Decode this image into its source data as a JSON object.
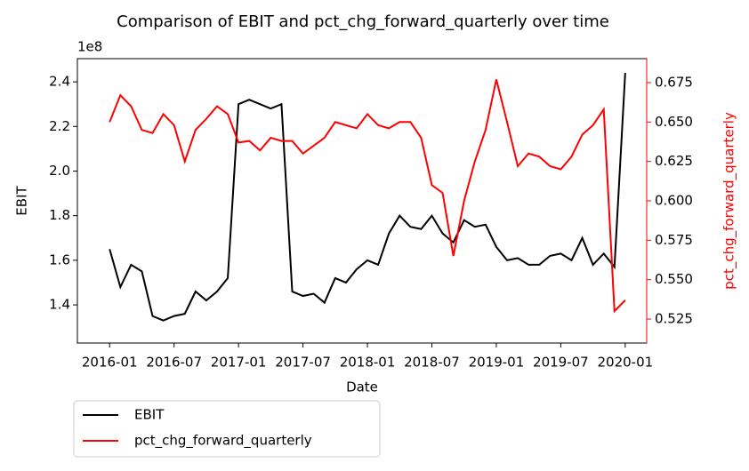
{
  "chart_data": {
    "type": "line",
    "title": "Comparison of EBIT and pct_chg_forward_quarterly over time",
    "x_label": "Date",
    "y_label": "EBIT",
    "y2_label": "pct_chg_forward_quarterly",
    "y_offset_label": "1e8",
    "x": [
      "2016-01",
      "2016-02",
      "2016-03",
      "2016-04",
      "2016-05",
      "2016-06",
      "2016-07",
      "2016-08",
      "2016-09",
      "2016-10",
      "2016-11",
      "2016-12",
      "2017-01",
      "2017-02",
      "2017-03",
      "2017-04",
      "2017-05",
      "2017-06",
      "2017-07",
      "2017-08",
      "2017-09",
      "2017-10",
      "2017-11",
      "2017-12",
      "2018-01",
      "2018-02",
      "2018-03",
      "2018-04",
      "2018-05",
      "2018-06",
      "2018-07",
      "2018-08",
      "2018-09",
      "2018-10",
      "2018-11",
      "2018-12",
      "2019-01",
      "2019-02",
      "2019-03",
      "2019-04",
      "2019-05",
      "2019-06",
      "2019-07",
      "2019-08",
      "2019-09",
      "2019-10",
      "2019-11",
      "2019-12",
      "2020-01"
    ],
    "xlim": [
      "2015-10",
      "2020-03"
    ],
    "xticks": [
      "2016-01",
      "2016-07",
      "2017-01",
      "2017-07",
      "2018-01",
      "2018-07",
      "2019-01",
      "2019-07",
      "2020-01"
    ],
    "ylim": [
      122900000,
      250400000
    ],
    "yticks": [
      {
        "value": 140000000,
        "label": "1.4"
      },
      {
        "value": 160000000,
        "label": "1.6"
      },
      {
        "value": 180000000,
        "label": "1.8"
      },
      {
        "value": 200000000,
        "label": "2.0"
      },
      {
        "value": 220000000,
        "label": "2.2"
      },
      {
        "value": 240000000,
        "label": "2.4"
      }
    ],
    "y2lim": [
      0.5098,
      0.6902
    ],
    "y2ticks": [
      0.525,
      {
        "value": 0.55,
        "label": "0.550"
      },
      0.575,
      {
        "value": 0.6,
        "label": "0.600"
      },
      0.625,
      {
        "value": 0.65,
        "label": "0.650"
      },
      0.675
    ],
    "legend_loc": "below",
    "series": [
      {
        "name": "EBIT",
        "color": "#000000",
        "values": [
          165000000,
          148000000,
          158000000,
          155000000,
          135000000,
          133000000,
          135000000,
          136000000,
          146000000,
          142000000,
          146000000,
          152000000,
          230000000,
          232000000,
          230000000,
          228000000,
          230000000,
          146000000,
          144000000,
          145000000,
          141000000,
          152000000,
          150000000,
          156000000,
          160000000,
          158000000,
          172000000,
          180000000,
          175000000,
          174000000,
          180000000,
          172000000,
          168000000,
          178000000,
          175000000,
          176000000,
          166000000,
          160000000,
          161000000,
          158000000,
          158000000,
          162000000,
          163000000,
          160000000,
          170000000,
          158000000,
          163000000,
          157000000,
          244000000
        ]
      },
      {
        "name": "pct_chg_forward_quarterly",
        "color": "#ff0000",
        "axis": "y2",
        "values": [
          0.65,
          0.667,
          0.66,
          0.645,
          0.643,
          0.655,
          0.648,
          0.625,
          0.645,
          0.652,
          0.66,
          0.655,
          0.637,
          0.638,
          0.632,
          0.64,
          0.638,
          0.638,
          0.63,
          0.635,
          0.64,
          0.65,
          0.648,
          0.646,
          0.655,
          0.648,
          0.646,
          0.65,
          0.65,
          0.64,
          0.61,
          0.605,
          0.565,
          0.6,
          0.625,
          0.645,
          0.677,
          0.65,
          0.622,
          0.63,
          0.628,
          0.622,
          0.62,
          0.628,
          0.642,
          0.648,
          0.658,
          0.53,
          0.537
        ]
      }
    ]
  }
}
